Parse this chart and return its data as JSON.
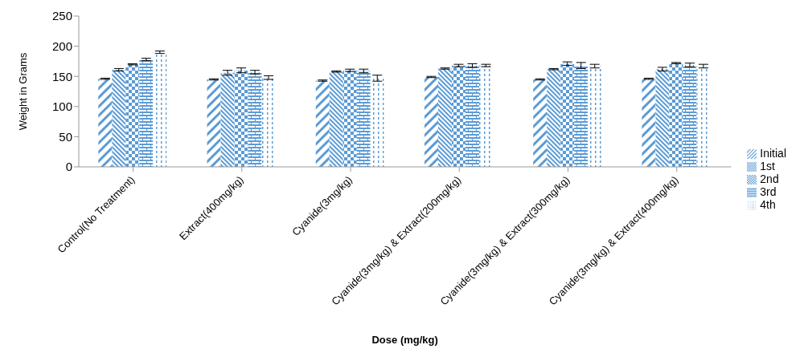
{
  "chart_data": {
    "type": "bar",
    "xlabel": "Dose (mg/kg)",
    "ylabel": "Weight in Grams",
    "categories": [
      "Control(No Treatment)",
      "Extract(400mg/kg)",
      "Cyanide(3mg/kg)",
      "Cyanide(3mg/kg) & Extract(200mg/kg)",
      "Cyanide(3mg/kg) & Extract(300mg/kg)",
      "Cyanide(3mg/kg) & Extract(400mg/kg)"
    ],
    "series": [
      {
        "name": "Initial",
        "color": "#5b9bd5",
        "values": [
          146,
          145,
          143,
          149,
          145,
          146
        ],
        "errors": [
          1,
          1,
          1,
          1,
          1,
          1
        ]
      },
      {
        "name": "1st",
        "color": "#5b9bd5",
        "values": [
          161,
          156,
          158,
          163,
          162,
          162
        ],
        "errors": [
          2,
          4,
          1,
          1,
          1,
          3
        ]
      },
      {
        "name": "2nd",
        "color": "#5b9bd5",
        "values": [
          170,
          160,
          160,
          168,
          171,
          172
        ],
        "errors": [
          1,
          4,
          2,
          2,
          3,
          1
        ]
      },
      {
        "name": "3rd",
        "color": "#5b9bd5",
        "values": [
          178,
          157,
          159,
          168,
          168,
          169
        ],
        "errors": [
          2,
          3,
          3,
          3,
          5,
          3
        ]
      },
      {
        "name": "4th",
        "color": "#5b9bd5",
        "values": [
          190,
          148,
          147,
          168,
          167,
          167
        ],
        "errors": [
          2,
          3,
          5,
          2,
          3,
          3
        ]
      }
    ],
    "ylim": [
      0,
      250
    ],
    "yticks": [
      0,
      50,
      100,
      150,
      200,
      250
    ],
    "grid": false,
    "legend": "right"
  }
}
